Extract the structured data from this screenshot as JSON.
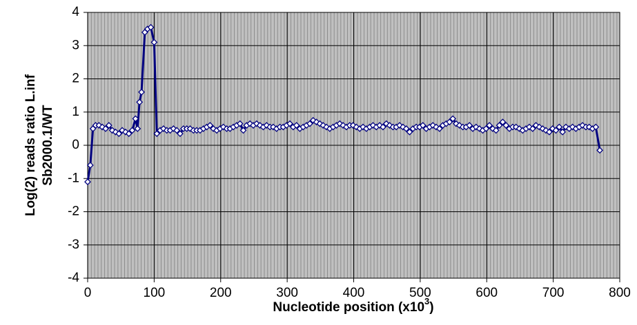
{
  "chart_data": {
    "type": "line",
    "ylabel": [
      "Log(2) reads ratio L.inf",
      "Sb2000.1/WT"
    ],
    "xlabel": [
      "Nucleotide position (x10",
      "3",
      ")"
    ],
    "color": "#000080",
    "marker": "diamond",
    "grid": true,
    "background": "#c0c0c0",
    "xlim": [
      0,
      800
    ],
    "xticks": [
      0,
      100,
      200,
      300,
      400,
      500,
      600,
      700,
      800
    ],
    "ylim": [
      -4,
      4
    ],
    "yticks": [
      -4,
      -3,
      -2,
      -1,
      0,
      1,
      2,
      3,
      4
    ],
    "x": [
      0,
      4,
      8,
      12,
      17,
      22,
      27,
      32,
      37,
      42,
      47,
      52,
      57,
      62,
      67,
      72,
      75,
      78,
      81,
      86,
      90,
      95,
      100,
      104,
      109,
      114,
      119,
      124,
      129,
      134,
      139,
      144,
      149,
      154,
      159,
      164,
      169,
      174,
      179,
      184,
      189,
      194,
      199,
      204,
      209,
      214,
      219,
      224,
      229,
      234,
      239,
      244,
      249,
      254,
      259,
      264,
      269,
      274,
      279,
      284,
      289,
      294,
      299,
      304,
      309,
      314,
      319,
      324,
      329,
      334,
      339,
      344,
      349,
      354,
      359,
      364,
      369,
      374,
      379,
      384,
      389,
      394,
      399,
      404,
      409,
      414,
      419,
      424,
      429,
      434,
      439,
      444,
      449,
      454,
      459,
      464,
      469,
      474,
      479,
      484,
      489,
      494,
      499,
      504,
      509,
      514,
      519,
      524,
      529,
      534,
      539,
      544,
      549,
      554,
      559,
      564,
      569,
      574,
      579,
      584,
      589,
      594,
      599,
      604,
      609,
      614,
      619,
      624,
      629,
      634,
      639,
      644,
      649,
      654,
      659,
      664,
      669,
      674,
      679,
      684,
      689,
      694,
      699,
      704,
      709,
      714,
      719,
      724,
      729,
      734,
      739,
      744,
      749,
      754,
      759,
      764,
      770
    ],
    "values": [
      -1.1,
      -0.6,
      0.5,
      0.6,
      0.6,
      0.55,
      0.5,
      0.6,
      0.45,
      0.4,
      0.35,
      0.45,
      0.4,
      0.35,
      0.45,
      0.8,
      0.5,
      1.3,
      1.6,
      3.4,
      3.5,
      3.55,
      3.1,
      0.35,
      0.45,
      0.5,
      0.45,
      0.45,
      0.5,
      0.45,
      0.35,
      0.5,
      0.5,
      0.5,
      0.45,
      0.45,
      0.45,
      0.5,
      0.55,
      0.6,
      0.5,
      0.45,
      0.5,
      0.55,
      0.5,
      0.5,
      0.55,
      0.6,
      0.65,
      0.45,
      0.6,
      0.65,
      0.6,
      0.65,
      0.6,
      0.55,
      0.6,
      0.55,
      0.55,
      0.5,
      0.55,
      0.55,
      0.6,
      0.65,
      0.55,
      0.6,
      0.5,
      0.55,
      0.6,
      0.65,
      0.75,
      0.7,
      0.65,
      0.6,
      0.55,
      0.5,
      0.55,
      0.6,
      0.65,
      0.6,
      0.55,
      0.6,
      0.6,
      0.55,
      0.5,
      0.55,
      0.5,
      0.55,
      0.6,
      0.55,
      0.6,
      0.55,
      0.65,
      0.6,
      0.55,
      0.55,
      0.6,
      0.55,
      0.5,
      0.4,
      0.5,
      0.55,
      0.55,
      0.6,
      0.5,
      0.55,
      0.6,
      0.55,
      0.5,
      0.6,
      0.65,
      0.7,
      0.8,
      0.65,
      0.6,
      0.55,
      0.55,
      0.6,
      0.5,
      0.55,
      0.5,
      0.45,
      0.5,
      0.6,
      0.5,
      0.45,
      0.6,
      0.7,
      0.6,
      0.5,
      0.55,
      0.55,
      0.5,
      0.45,
      0.5,
      0.55,
      0.5,
      0.6,
      0.55,
      0.5,
      0.45,
      0.4,
      0.5,
      0.45,
      0.55,
      0.4,
      0.55,
      0.5,
      0.55,
      0.5,
      0.55,
      0.6,
      0.55,
      0.55,
      0.5,
      0.55,
      -0.15
    ]
  }
}
